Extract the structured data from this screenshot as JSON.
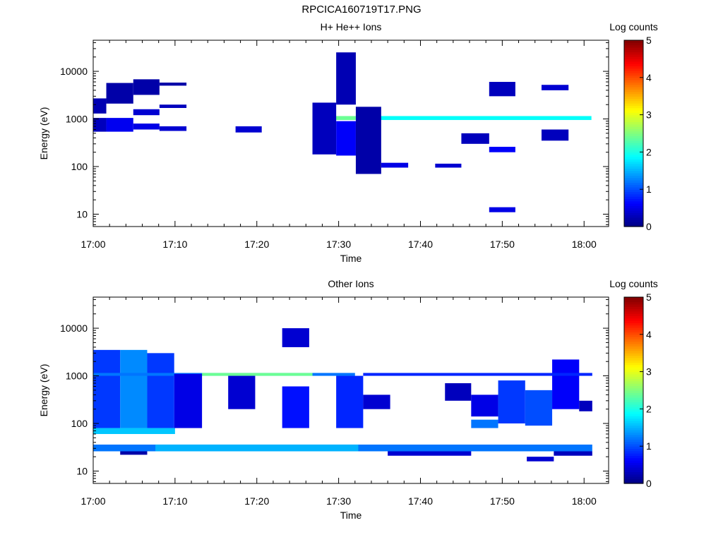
{
  "page_title": "RPCICA160719T17.PNG",
  "chart_data": [
    {
      "type": "heatmap",
      "title": "H+ He++ Ions",
      "xlabel": "Time",
      "ylabel": "Energy (eV)",
      "x_ticks": [
        "17:00",
        "17:10",
        "17:20",
        "17:30",
        "17:40",
        "17:50",
        "18:00"
      ],
      "x_range_minutes": [
        0,
        63
      ],
      "y_scale": "log",
      "y_range": [
        5.5,
        45000
      ],
      "y_ticks": [
        {
          "value": 10,
          "label": "10"
        },
        {
          "value": 100,
          "label": "100"
        },
        {
          "value": 1000,
          "label": "1000"
        },
        {
          "value": 10000,
          "label": "10000"
        }
      ],
      "colorbar": {
        "label": "Log counts",
        "range": [
          0,
          5
        ],
        "ticks": [
          "0",
          "1",
          "2",
          "3",
          "4",
          "5"
        ]
      },
      "grid": false,
      "cells": [
        {
          "t": [
            0,
            1.6
          ],
          "e": [
            540,
            1050
          ],
          "c": 0.3
        },
        {
          "t": [
            0,
            1.6
          ],
          "e": [
            1300,
            2700
          ],
          "c": 0.25
        },
        {
          "t": [
            1.6,
            4.9
          ],
          "e": [
            540,
            1050
          ],
          "c": 0.55
        },
        {
          "t": [
            1.6,
            4.9
          ],
          "e": [
            2100,
            5700
          ],
          "c": 0.2
        },
        {
          "t": [
            4.9,
            8.1
          ],
          "e": [
            600,
            800
          ],
          "c": 0.5
        },
        {
          "t": [
            4.9,
            8.1
          ],
          "e": [
            1200,
            1600
          ],
          "c": 0.4
        },
        {
          "t": [
            4.9,
            8.1
          ],
          "e": [
            3200,
            6800
          ],
          "c": 0.2
        },
        {
          "t": [
            8.1,
            11.4
          ],
          "e": [
            560,
            700
          ],
          "c": 0.4
        },
        {
          "t": [
            8.1,
            11.4
          ],
          "e": [
            1700,
            2000
          ],
          "c": 0.3
        },
        {
          "t": [
            8.1,
            11.4
          ],
          "e": [
            5000,
            5800
          ],
          "c": 0.2
        },
        {
          "t": [
            17.4,
            20.6
          ],
          "e": [
            520,
            700
          ],
          "c": 0.4
        },
        {
          "t": [
            26.8,
            32.1
          ],
          "e": [
            950,
            1150
          ],
          "c": 2.4
        },
        {
          "t": [
            26.8,
            29.7
          ],
          "e": [
            180,
            2200
          ],
          "c": 0.3
        },
        {
          "t": [
            29.7,
            32.1
          ],
          "e": [
            170,
            900
          ],
          "c": 0.6
        },
        {
          "t": [
            29.7,
            32.1
          ],
          "e": [
            2000,
            25000
          ],
          "c": 0.25
        },
        {
          "t": [
            32.1,
            60.9
          ],
          "e": [
            950,
            1150
          ],
          "c": 1.9
        },
        {
          "t": [
            32.1,
            35.2
          ],
          "e": [
            70,
            1800
          ],
          "c": 0.2
        },
        {
          "t": [
            35.2,
            38.5
          ],
          "e": [
            95,
            120
          ],
          "c": 0.5
        },
        {
          "t": [
            41.8,
            45.0
          ],
          "e": [
            95,
            115
          ],
          "c": 0.4
        },
        {
          "t": [
            45.0,
            48.4
          ],
          "e": [
            300,
            500
          ],
          "c": 0.3
        },
        {
          "t": [
            48.4,
            51.6
          ],
          "e": [
            200,
            260
          ],
          "c": 0.6
        },
        {
          "t": [
            48.4,
            51.6
          ],
          "e": [
            11,
            14
          ],
          "c": 0.5
        },
        {
          "t": [
            48.4,
            51.6
          ],
          "e": [
            3000,
            6000
          ],
          "c": 0.3
        },
        {
          "t": [
            54.8,
            58.1
          ],
          "e": [
            4000,
            5200
          ],
          "c": 0.4
        },
        {
          "t": [
            54.8,
            58.1
          ],
          "e": [
            350,
            600
          ],
          "c": 0.3
        }
      ]
    },
    {
      "type": "heatmap",
      "title": "Other Ions",
      "xlabel": "Time",
      "ylabel": "Energy (eV)",
      "x_ticks": [
        "17:00",
        "17:10",
        "17:20",
        "17:30",
        "17:40",
        "17:50",
        "18:00"
      ],
      "x_range_minutes": [
        0,
        63
      ],
      "y_scale": "log",
      "y_range": [
        5.5,
        45000
      ],
      "y_ticks": [
        {
          "value": 10,
          "label": "10"
        },
        {
          "value": 100,
          "label": "100"
        },
        {
          "value": 1000,
          "label": "1000"
        },
        {
          "value": 10000,
          "label": "10000"
        }
      ],
      "colorbar": {
        "label": "Log counts",
        "range": [
          0,
          5
        ],
        "ticks": [
          "0",
          "1",
          "2",
          "3",
          "4",
          "5"
        ]
      },
      "grid": false,
      "cells": [
        {
          "t": [
            0,
            61
          ],
          "e": [
            26,
            36
          ],
          "c": 1.2
        },
        {
          "t": [
            7.6,
            32.4
          ],
          "e": [
            26,
            36
          ],
          "c": 1.5
        },
        {
          "t": [
            0,
            3.3
          ],
          "e": [
            80,
            3500
          ],
          "c": 0.9
        },
        {
          "t": [
            3.3,
            6.6
          ],
          "e": [
            80,
            3500
          ],
          "c": 1.3
        },
        {
          "t": [
            6.6,
            9.9
          ],
          "e": [
            80,
            3000
          ],
          "c": 0.9
        },
        {
          "t": [
            0,
            10
          ],
          "e": [
            60,
            80
          ],
          "c": 1.6
        },
        {
          "t": [
            0,
            32
          ],
          "e": [
            1000,
            1150
          ],
          "c": 1.2
        },
        {
          "t": [
            13.3,
            26.8
          ],
          "e": [
            1000,
            1150
          ],
          "c": 2.4
        },
        {
          "t": [
            9.9,
            13.3
          ],
          "e": [
            80,
            1100
          ],
          "c": 0.5
        },
        {
          "t": [
            16.5,
            19.8
          ],
          "e": [
            200,
            1000
          ],
          "c": 0.4
        },
        {
          "t": [
            23.1,
            26.4
          ],
          "e": [
            80,
            600
          ],
          "c": 0.7
        },
        {
          "t": [
            23.1,
            26.4
          ],
          "e": [
            4000,
            10000
          ],
          "c": 0.4
        },
        {
          "t": [
            29.7,
            33.0
          ],
          "e": [
            80,
            1000
          ],
          "c": 0.8
        },
        {
          "t": [
            33.0,
            36.3
          ],
          "e": [
            200,
            400
          ],
          "c": 0.4
        },
        {
          "t": [
            43.0,
            46.2
          ],
          "e": [
            300,
            700
          ],
          "c": 0.3
        },
        {
          "t": [
            46.2,
            49.5
          ],
          "e": [
            140,
            400
          ],
          "c": 0.5
        },
        {
          "t": [
            46.2,
            49.5
          ],
          "e": [
            80,
            120
          ],
          "c": 1.2
        },
        {
          "t": [
            49.5,
            52.8
          ],
          "e": [
            100,
            800
          ],
          "c": 0.9
        },
        {
          "t": [
            52.8,
            56.1
          ],
          "e": [
            90,
            500
          ],
          "c": 1.0
        },
        {
          "t": [
            56.1,
            59.4
          ],
          "e": [
            200,
            2200
          ],
          "c": 0.6
        },
        {
          "t": [
            33.0,
            61
          ],
          "e": [
            1000,
            1150
          ],
          "c": 0.8
        },
        {
          "t": [
            59.4,
            61
          ],
          "e": [
            180,
            300
          ],
          "c": 0.3
        },
        {
          "t": [
            3.3,
            6.6
          ],
          "e": [
            22,
            26
          ],
          "c": 0.2
        },
        {
          "t": [
            36,
            46.2
          ],
          "e": [
            21,
            26
          ],
          "c": 0.4
        },
        {
          "t": [
            53.0,
            56.3
          ],
          "e": [
            16,
            20
          ],
          "c": 0.4
        },
        {
          "t": [
            56.3,
            61
          ],
          "e": [
            21,
            26
          ],
          "c": 0.3
        }
      ]
    }
  ]
}
